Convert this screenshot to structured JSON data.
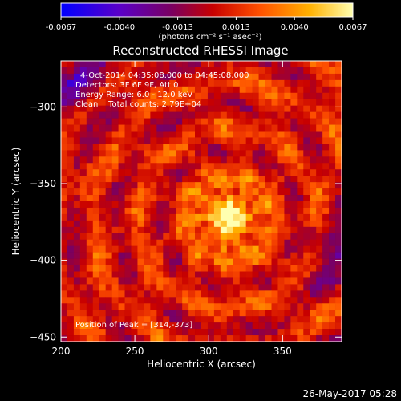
{
  "colorbar": {
    "ticks": [
      "-0.0067",
      "-0.0040",
      "-0.0013",
      "0.0013",
      "0.0040",
      "0.0067"
    ],
    "unit_label": "(photons cm⁻² s⁻¹ asec⁻²)",
    "range": [
      -0.0067,
      0.0067
    ],
    "colors": [
      "#0000ff",
      "#5a00c8",
      "#7a0060",
      "#c80000",
      "#ff5000",
      "#ffb000",
      "#ffffb0"
    ]
  },
  "chart_data": {
    "type": "heatmap",
    "title": "Reconstructed RHESSI Image",
    "xlabel": "Heliocentric X (arcsec)",
    "ylabel": "Heliocentric Y (arcsec)",
    "xlim": [
      200,
      390
    ],
    "ylim": [
      -453,
      -270
    ],
    "x_ticks": [
      200,
      250,
      300,
      350
    ],
    "y_ticks": [
      -300,
      -350,
      -400,
      -450
    ],
    "peak": [
      314,
      -373
    ],
    "annotations": [
      "4-Oct-2014 04:35:08.000 to 04:45:08.000",
      "Detectors: 3F 6F 9F, Att 0",
      "Energy Range: 6.0 - 12.0 keV",
      "Clean    Total counts: 2.79E+04"
    ],
    "peak_label": "Position of Peak = [314,-373]"
  },
  "footer_date": "26-May-2017 05:28"
}
